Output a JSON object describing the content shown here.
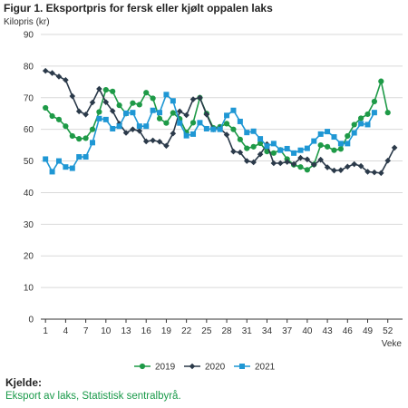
{
  "chart_data": {
    "type": "line",
    "title": "Figur 1. Eksportpris for fersk eller kjølt oppalen laks",
    "ylabel": "Kilopris (kr)",
    "xlabel": "Veke",
    "ylim": [
      0,
      90
    ],
    "yticks": [
      0,
      10,
      20,
      30,
      40,
      50,
      60,
      70,
      80,
      90
    ],
    "xticks": [
      1,
      4,
      7,
      10,
      13,
      16,
      19,
      22,
      25,
      28,
      31,
      34,
      37,
      40,
      43,
      46,
      49,
      52
    ],
    "grid": true,
    "legend_position": "bottom",
    "series": [
      {
        "name": "2019",
        "color": "#1e9a47",
        "marker": "circle",
        "x": [
          1,
          2,
          3,
          4,
          5,
          6,
          7,
          8,
          9,
          10,
          11,
          12,
          13,
          14,
          15,
          16,
          17,
          18,
          19,
          20,
          21,
          22,
          23,
          24,
          25,
          26,
          27,
          28,
          29,
          30,
          31,
          32,
          33,
          34,
          35,
          36,
          37,
          38,
          39,
          40,
          41,
          42,
          43,
          44,
          45,
          46,
          47,
          48,
          49,
          50,
          51,
          52
        ],
        "values": [
          66.8,
          64.2,
          63.1,
          61.0,
          57.9,
          57.0,
          57.2,
          60.0,
          65.5,
          72.5,
          72.0,
          67.6,
          65.0,
          68.3,
          67.8,
          71.6,
          69.8,
          63.4,
          62.0,
          65.2,
          63.3,
          59.0,
          62.1,
          70.0,
          65.0,
          60.5,
          60.8,
          61.8,
          60.0,
          56.8,
          54.0,
          54.5,
          55.6,
          53.0,
          52.5,
          53.5,
          50.6,
          48.8,
          48.1,
          47.2,
          48.9,
          55.0,
          54.5,
          53.4,
          53.8,
          57.9,
          61.5,
          63.5,
          64.8,
          68.8,
          75.2,
          65.3
        ]
      },
      {
        "name": "2020",
        "color": "#2b3a4a",
        "marker": "diamond",
        "x": [
          1,
          2,
          3,
          4,
          5,
          6,
          7,
          8,
          9,
          10,
          11,
          12,
          13,
          14,
          15,
          16,
          17,
          18,
          19,
          20,
          21,
          22,
          23,
          24,
          25,
          26,
          27,
          28,
          29,
          30,
          31,
          32,
          33,
          34,
          35,
          36,
          37,
          38,
          39,
          40,
          41,
          42,
          43,
          44,
          45,
          46,
          47,
          48,
          49,
          50,
          51,
          52,
          53
        ],
        "values": [
          78.5,
          77.8,
          76.7,
          75.6,
          70.5,
          65.7,
          64.7,
          68.5,
          72.8,
          68.6,
          65.8,
          61.8,
          58.9,
          60.0,
          59.5,
          56.2,
          56.5,
          56.1,
          54.8,
          58.7,
          65.7,
          64.5,
          69.5,
          70.0,
          64.7,
          60.0,
          60.3,
          58.3,
          53.0,
          52.7,
          50.0,
          49.6,
          52.1,
          55.3,
          49.3,
          49.3,
          49.7,
          49.0,
          51.0,
          50.5,
          48.8,
          50.4,
          48.0,
          47.0,
          47.1,
          48.2,
          49.0,
          48.4,
          46.6,
          46.4,
          46.2,
          50.1,
          54.2
        ]
      },
      {
        "name": "2021",
        "color": "#1f97d4",
        "marker": "square",
        "x": [
          1,
          2,
          3,
          4,
          5,
          6,
          7,
          8,
          9,
          10,
          11,
          12,
          13,
          14,
          15,
          16,
          17,
          18,
          19,
          20,
          21,
          22,
          23,
          24,
          25,
          26,
          27,
          28,
          29,
          30,
          31,
          32,
          33,
          34,
          35,
          36,
          37,
          38,
          39,
          40,
          41,
          42,
          43,
          44,
          45,
          46,
          47,
          48,
          49,
          50
        ],
        "values": [
          50.6,
          46.6,
          50.0,
          48.1,
          47.7,
          51.3,
          51.3,
          55.8,
          63.4,
          63.1,
          60.2,
          61.0,
          65.1,
          65.3,
          61.0,
          61.0,
          66.0,
          65.3,
          71.0,
          69.0,
          62.0,
          58.0,
          58.5,
          62.1,
          60.2,
          60.0,
          60.0,
          64.4,
          66.0,
          62.5,
          59.0,
          59.4,
          57.0,
          54.7,
          55.5,
          53.4,
          53.9,
          52.5,
          53.4,
          54.0,
          56.3,
          58.5,
          59.3,
          57.6,
          55.5,
          55.5,
          58.9,
          61.8,
          61.5,
          65.3
        ]
      }
    ]
  },
  "source": {
    "heading": "Kjelde:",
    "text": "Eksport av laks, Statistisk sentralbyrå."
  }
}
